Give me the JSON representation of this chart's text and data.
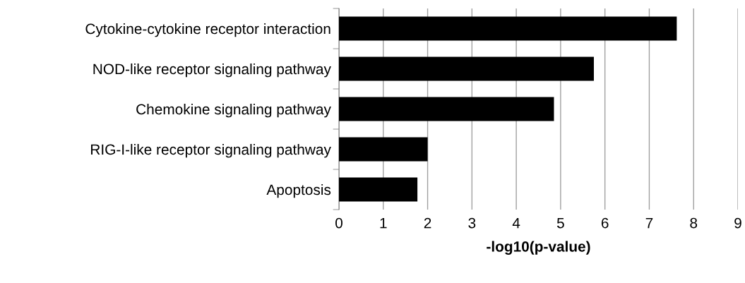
{
  "chart_data": {
    "type": "bar",
    "orientation": "horizontal",
    "xlabel": "-log10(p-value)",
    "categories": [
      "Cytokine-cytokine receptor interaction",
      "NOD-like receptor signaling pathway",
      "Chemokine signaling pathway",
      "RIG-I-like receptor signaling pathway",
      "Apoptosis"
    ],
    "values": [
      7.62,
      5.75,
      4.85,
      2.0,
      1.77
    ],
    "color": "#000000",
    "xlim": [
      0,
      9
    ],
    "xticks": [
      0,
      1,
      2,
      3,
      4,
      5,
      6,
      7,
      8,
      9
    ],
    "grid": "x"
  }
}
